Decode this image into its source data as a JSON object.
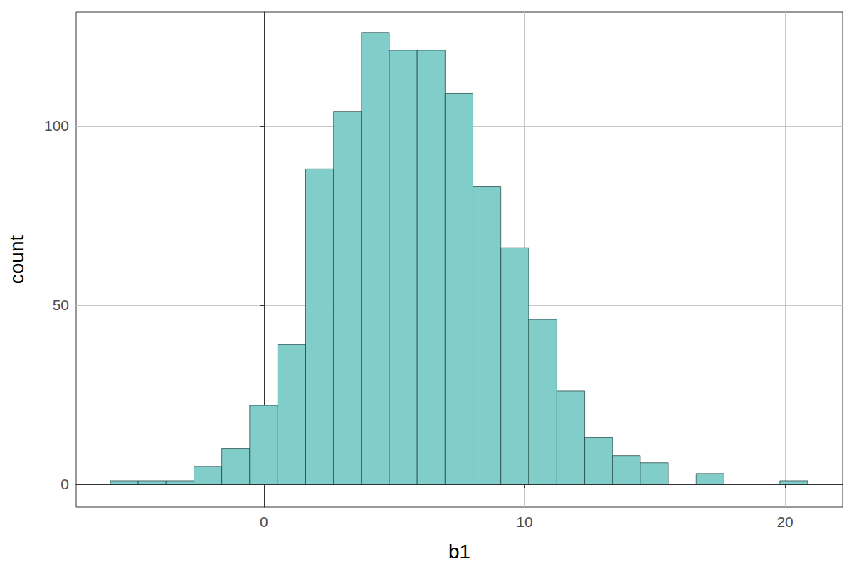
{
  "chart_data": {
    "type": "histogram",
    "x_label": "b1",
    "y_label": "count",
    "bins": [
      -5.9,
      -4.83,
      -3.76,
      -2.69,
      -1.62,
      -0.55,
      0.53,
      1.6,
      2.67,
      3.74,
      4.81,
      5.88,
      6.95,
      8.02,
      9.09,
      10.16,
      11.24,
      12.31,
      13.38,
      14.45,
      15.52,
      16.59,
      17.66,
      18.73,
      19.8,
      20.87
    ],
    "counts": [
      1,
      1,
      1,
      5,
      10,
      22,
      39,
      88,
      104,
      126,
      121,
      121,
      109,
      83,
      66,
      46,
      26,
      13,
      8,
      6,
      0,
      3,
      0,
      0,
      1
    ],
    "color": "#80cdc9",
    "xlim": [
      -7.21,
      22.21
    ],
    "xticks": [
      0,
      10,
      20
    ],
    "ylim": [
      -6.35,
      131.7
    ],
    "yticks": [
      0,
      50,
      100
    ],
    "grid": true
  }
}
